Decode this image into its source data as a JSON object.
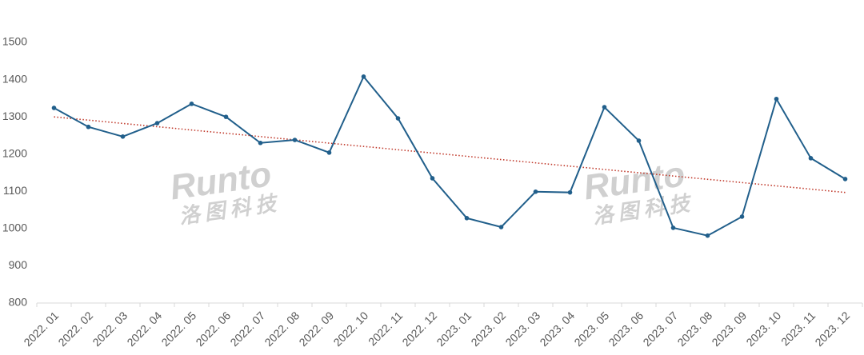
{
  "chart_data": {
    "type": "line",
    "categories": [
      "2022. 01",
      "2022. 02",
      "2022. 03",
      "2022. 04",
      "2022. 05",
      "2022. 06",
      "2022. 07",
      "2022. 08",
      "2022. 09",
      "2022. 10",
      "2022. 11",
      "2022. 12",
      "2023. 01",
      "2023. 02",
      "2023. 03",
      "2023. 04",
      "2023. 05",
      "2023. 06",
      "2023. 07",
      "2023. 08",
      "2023. 09",
      "2023. 10",
      "2023. 11",
      "2023. 12"
    ],
    "values": [
      1324,
      1273,
      1247,
      1283,
      1335,
      1300,
      1230,
      1238,
      1204,
      1408,
      1296,
      1135,
      1028,
      1004,
      1099,
      1097,
      1326,
      1236,
      1002,
      981,
      1032,
      1348,
      1189,
      1133
    ],
    "color": "#215f8b",
    "trendline": {
      "color": "#c0392b",
      "values": [
        1300,
        1097
      ]
    },
    "ylim": [
      800,
      1500
    ],
    "yticks": [
      800,
      900,
      1000,
      1100,
      1200,
      1300,
      1400,
      1500
    ],
    "grid": false,
    "watermark": {
      "text": "Runto",
      "subtext": "洛图科技"
    }
  }
}
